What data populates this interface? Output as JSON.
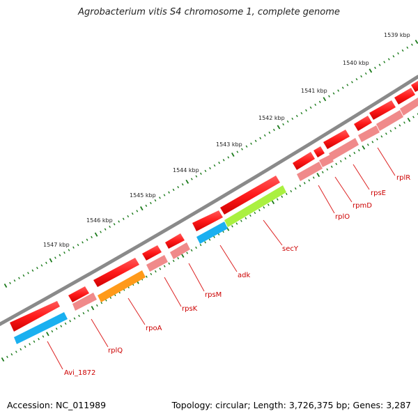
{
  "title": "Agrobacterium vitis S4 chromosome 1, complete genome",
  "footer": {
    "accession": "Accession: NC_011989",
    "summary": "Topology: circular; Length: 3,726,375 bp; Genes: 3,287"
  },
  "colors": {
    "backbone": "#808080",
    "tick": "#1a7a1a",
    "cds": "#ff1a1a",
    "cds_light": "#f08a8a",
    "gene_blue": "#1ab0f0",
    "gene_orange": "#ff9a1a",
    "gene_green": "#aaf040",
    "label": "#cc0000"
  },
  "scale": {
    "tick_labels": [
      "1539 kbp",
      "1540 kbp",
      "1541 kbp",
      "1542 kbp",
      "1543 kbp",
      "1544 kbp",
      "1545 kbp",
      "1546 kbp",
      "1547 kbp"
    ]
  },
  "gene_labels": [
    "rplR",
    "rpsE",
    "rpmD",
    "rplO",
    "secY",
    "adk",
    "rpsM",
    "rpsK",
    "rpoA",
    "rplQ",
    "Avi_1872"
  ]
}
